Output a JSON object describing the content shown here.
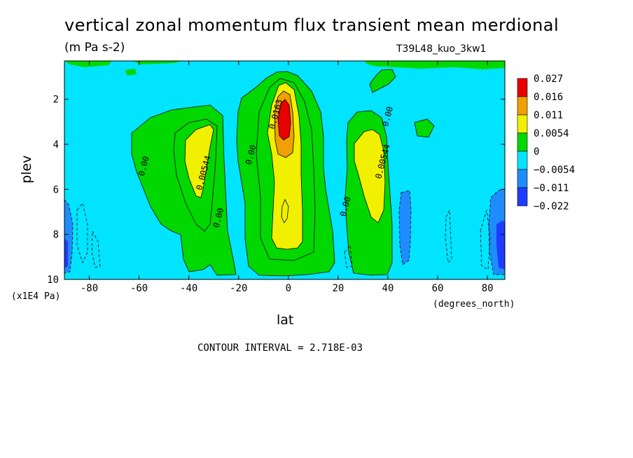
{
  "title": "vertical zonal momentum flux transient mean merdional",
  "units": "(m Pa s-2)",
  "run_id": "T39L48_kuo_3kw1",
  "contour_interval": "CONTOUR INTERVAL = 2.718E-03",
  "chart_data": {
    "type": "heatmap",
    "xlabel": "lat",
    "xunit": "(degrees_north)",
    "ylabel": "plev",
    "yunit": "(x1E4 Pa)",
    "xlim": [
      -90,
      87
    ],
    "ylim": [
      10,
      0.3
    ],
    "x_ticks": [
      -80,
      -60,
      -40,
      -20,
      0,
      20,
      40,
      60,
      80
    ],
    "y_ticks": [
      2,
      4,
      6,
      8,
      10
    ],
    "legend": {
      "labels": [
        "0.027",
        "0.016",
        "0.011",
        "0.0054",
        "0",
        "−0.0054",
        "−0.011",
        "−0.022"
      ],
      "colors": [
        "#e80000",
        "#f0a000",
        "#f0f000",
        "#00d800",
        "#00e4ff",
        "#1e8cff",
        "#1e3cff"
      ],
      "placement": "right"
    },
    "contour_labels": [
      {
        "text": "0.00",
        "lat": -57,
        "plev": 5.0
      },
      {
        "text": "0.00544",
        "lat": -33,
        "plev": 5.3
      },
      {
        "text": "0.00",
        "lat": -27,
        "plev": 7.3
      },
      {
        "text": "0.00",
        "lat": -14,
        "plev": 4.5
      },
      {
        "text": "0.0163",
        "lat": -4,
        "plev": 2.7
      },
      {
        "text": "0.00",
        "lat": 24,
        "plev": 6.8
      },
      {
        "text": "0.00544",
        "lat": 39,
        "plev": 4.8
      },
      {
        "text": "0.00",
        "lat": 41,
        "plev": 2.8
      }
    ],
    "regions": [
      {
        "level": "0 to 0.0054",
        "lat_range": [
          -60,
          -22
        ],
        "plev_range": [
          2.2,
          9.8
        ]
      },
      {
        "level": "0.0054 to 0.011",
        "lat_range": [
          -40,
          -28
        ],
        "plev_range": [
          3.5,
          6.2
        ]
      },
      {
        "level": "0 to 0.0054",
        "lat_range": [
          -17,
          20
        ],
        "plev_range": [
          0.5,
          9.7
        ]
      },
      {
        "level": "0.0054 to 0.011",
        "lat_range": [
          -5,
          6
        ],
        "plev_range": [
          1.5,
          8.4
        ]
      },
      {
        "level": "0.011 to 0.016",
        "lat_range": [
          -4,
          4
        ],
        "plev_range": [
          1.8,
          4.5
        ]
      },
      {
        "level": "0.016 to 0.027",
        "lat_range": [
          -2,
          2
        ],
        "plev_range": [
          2.2,
          3.6
        ]
      },
      {
        "level": "0 to 0.0054",
        "lat_range": [
          26,
          47
        ],
        "plev_range": [
          2.5,
          9.8
        ]
      },
      {
        "level": "0.0054 to 0.011",
        "lat_range": [
          29,
          42
        ],
        "plev_range": [
          3.4,
          7.0
        ]
      },
      {
        "level": "-0.0054 to -0.011",
        "lat_range": [
          47,
          52
        ],
        "plev_range": [
          6.2,
          9.1
        ]
      },
      {
        "level": "-0.0054 to -0.011",
        "lat_range": [
          77,
          87
        ],
        "plev_range": [
          6.0,
          9.8
        ]
      },
      {
        "level": "-0.0054 to -0.011",
        "lat_range": [
          -90,
          -87
        ],
        "plev_range": [
          6.5,
          10
        ]
      }
    ]
  }
}
